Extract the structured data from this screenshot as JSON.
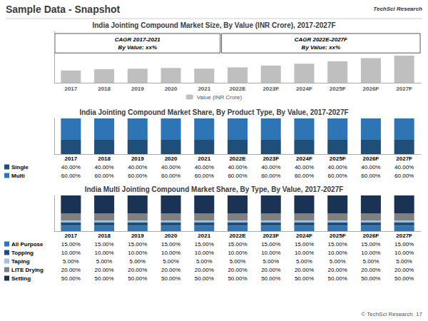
{
  "title": "Sample Data - Snapshot",
  "annotations": [
    "TechSci Research",
    "© TechSci Research  17"
  ],
  "chart_data": [
    {
      "type": "bar",
      "title": "India Jointing Compound Market Size, By Value (INR Crore), 2017-2027F",
      "categories": [
        "2017",
        "2018",
        "2019",
        "2020",
        "2021",
        "2022E",
        "2023F",
        "2024F",
        "2025F",
        "2026F",
        "2027F"
      ],
      "series": [
        {
          "name": "Value (INR Crore)",
          "color": "#bfbfbf",
          "values": [
            10,
            11,
            11.5,
            12,
            11.5,
            12.5,
            14,
            15.5,
            17.5,
            20,
            22
          ]
        }
      ],
      "ylim": [
        0,
        41.8
      ],
      "annotations": [
        "CAGR 2017-2021\nBy Value: xx%",
        "CAGR 2022E-2027F\nBy Value: xx%"
      ],
      "tick_labels": "x",
      "grid": false,
      "legend": "bottom"
    },
    {
      "type": "bar",
      "title": "India Jointing Compound Market Share, By Product Type, By Value, 2017-2027F",
      "categories": [
        "2017",
        "2018",
        "2019",
        "2020",
        "2021",
        "2022E",
        "2023F",
        "2024F",
        "2025F",
        "2026F",
        "2027F"
      ],
      "series": [
        {
          "name": "Single",
          "color": "#1f4e79",
          "values": [
            40,
            40,
            40,
            40,
            40,
            40,
            40,
            40,
            40,
            40,
            40
          ],
          "value_labels": [
            "40.00%",
            "40.00%",
            "40.00%",
            "40.00%",
            "40.00%",
            "40.00%",
            "40.00%",
            "40.00%",
            "40.00%",
            "40.00%",
            "40.00%"
          ]
        },
        {
          "name": "Multi",
          "color": "#2e75b6",
          "values": [
            60,
            60,
            60,
            60,
            60,
            60,
            60,
            60,
            60,
            60,
            60
          ],
          "value_labels": [
            "60.00%",
            "60.00%",
            "60.00%",
            "60.00%",
            "60.00%",
            "60.00%",
            "60.00%",
            "60.00%",
            "60.00%",
            "60.00%",
            "60.00%"
          ]
        }
      ],
      "ylim": [
        0,
        100
      ],
      "stacked": true,
      "tick_labels": false,
      "grid": false
    },
    {
      "type": "bar",
      "title": "India Multi Jointing Compound Market Share, By Type, By Value, 2017-2027F",
      "categories": [
        "2017",
        "2018",
        "2019",
        "2020",
        "2021",
        "2022E",
        "2023F",
        "2024F",
        "2025F",
        "2026F",
        "2027F"
      ],
      "series": [
        {
          "name": "All Purpose",
          "color": "#2e75b6",
          "values": [
            15,
            15,
            15,
            15,
            15,
            15,
            15,
            15,
            15,
            15,
            15
          ],
          "value_labels": [
            "15.00%",
            "15.00%",
            "15.00%",
            "15.00%",
            "15.00%",
            "15.00%",
            "15.00%",
            "15.00%",
            "15.00%",
            "15.00%",
            "15.00%"
          ]
        },
        {
          "name": "Topping",
          "color": "#1f4e79",
          "values": [
            10,
            10,
            10,
            10,
            10,
            10,
            10,
            10,
            10,
            10,
            10
          ],
          "value_labels": [
            "10.00%",
            "10.00%",
            "10.00%",
            "10.00%",
            "10.00%",
            "10.00%",
            "10.00%",
            "10.00%",
            "10.00%",
            "10.00%",
            "10.00%"
          ]
        },
        {
          "name": "Taping",
          "color": "#9dc3e6",
          "values": [
            5,
            5,
            5,
            5,
            5,
            5,
            5,
            5,
            5,
            5,
            5
          ],
          "value_labels": [
            "5.00%",
            "5.00%",
            "5.00%",
            "5.00%",
            "5.00%",
            "5.00%",
            "5.00%",
            "5.00%",
            "5.00%",
            "5.00%",
            "5.00%"
          ]
        },
        {
          "name": "LITE Drying",
          "color": "#808080",
          "values": [
            20,
            20,
            20,
            20,
            20,
            20,
            20,
            20,
            20,
            20,
            20
          ],
          "value_labels": [
            "20.00%",
            "20.00%",
            "20.00%",
            "20.00%",
            "20.00%",
            "20.00%",
            "20.00%",
            "20.00%",
            "20.00%",
            "20.00%",
            "20.00%"
          ]
        },
        {
          "name": "Setting",
          "color": "#1a3254",
          "values": [
            50,
            50,
            50,
            50,
            50,
            50,
            50,
            50,
            50,
            50,
            50
          ],
          "value_labels": [
            "50.00%",
            "50.00%",
            "50.00%",
            "50.00%",
            "50.00%",
            "50.00%",
            "50.00%",
            "50.00%",
            "50.00%",
            "50.00%",
            "50.00%"
          ]
        }
      ],
      "ylim": [
        0,
        100
      ],
      "stacked": true,
      "tick_labels": false,
      "grid": false
    }
  ]
}
